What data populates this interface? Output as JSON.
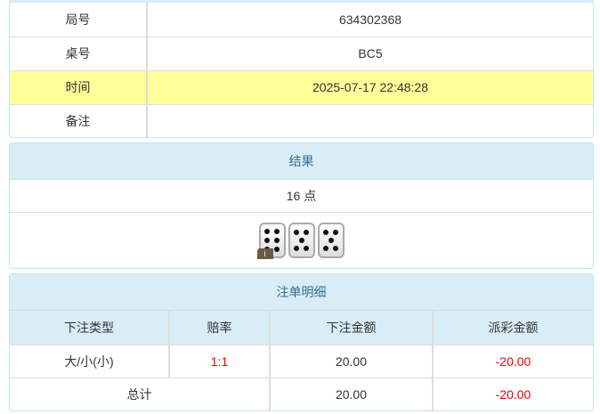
{
  "info": {
    "rows": [
      {
        "label": "局号",
        "value": "634302368"
      },
      {
        "label": "桌号",
        "value": "BC5"
      },
      {
        "label": "时间",
        "value": "2025-07-17 22:48:28"
      },
      {
        "label": "备注",
        "value": ""
      }
    ]
  },
  "result": {
    "title": "结果",
    "points": "16 点",
    "dice": [
      6,
      5,
      5
    ],
    "info_badge": "i"
  },
  "bets": {
    "title": "注单明细",
    "headers": [
      "下注类型",
      "赔率",
      "下注金额",
      "派彩金额"
    ],
    "row": {
      "type": "大/小(小)",
      "odds": "1:1",
      "amount": "20.00",
      "payout": "-20.00"
    },
    "total": {
      "label": "总计",
      "amount": "20.00",
      "payout": "-20.00"
    }
  },
  "colors": {
    "header_bg": "#d9edf7",
    "highlight": "#ffff99",
    "negative": "#ee0000"
  }
}
